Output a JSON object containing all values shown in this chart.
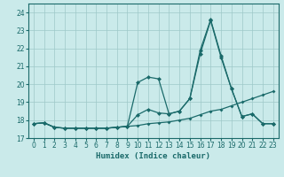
{
  "xlabel": "Humidex (Indice chaleur)",
  "xlim": [
    -0.5,
    23.5
  ],
  "ylim": [
    17,
    24.5
  ],
  "yticks": [
    17,
    18,
    19,
    20,
    21,
    22,
    23,
    24
  ],
  "xticks": [
    0,
    1,
    2,
    3,
    4,
    5,
    6,
    7,
    8,
    9,
    10,
    11,
    12,
    13,
    14,
    15,
    16,
    17,
    18,
    19,
    20,
    21,
    22,
    23
  ],
  "bg_color": "#caeaea",
  "grid_color": "#9ec8c8",
  "line_color": "#1a6a6a",
  "line1_x": [
    0,
    1,
    2,
    3,
    4,
    5,
    6,
    7,
    8,
    9,
    10,
    11,
    12,
    13,
    14,
    15,
    16,
    17,
    18,
    19,
    20,
    21,
    22,
    23
  ],
  "line1_y": [
    17.8,
    17.85,
    17.6,
    17.55,
    17.55,
    17.55,
    17.55,
    17.55,
    17.6,
    17.65,
    17.7,
    17.8,
    17.85,
    17.9,
    18.0,
    18.1,
    18.3,
    18.5,
    18.6,
    18.8,
    19.0,
    19.2,
    19.4,
    19.6
  ],
  "line2_x": [
    0,
    1,
    2,
    3,
    4,
    5,
    6,
    7,
    8,
    9,
    10,
    11,
    12,
    13,
    14,
    15,
    16,
    17,
    18,
    19,
    20,
    21,
    22,
    23
  ],
  "line2_y": [
    17.8,
    17.85,
    17.6,
    17.55,
    17.55,
    17.55,
    17.55,
    17.55,
    17.6,
    17.65,
    18.3,
    18.6,
    18.4,
    18.35,
    18.5,
    19.2,
    21.7,
    23.55,
    21.5,
    19.75,
    18.2,
    18.35,
    17.8,
    17.8
  ],
  "line3_x": [
    0,
    1,
    2,
    3,
    4,
    5,
    6,
    7,
    8,
    9,
    10,
    11,
    12,
    13,
    14,
    15,
    16,
    17,
    18,
    19,
    20,
    21,
    22,
    23
  ],
  "line3_y": [
    17.8,
    17.85,
    17.6,
    17.55,
    17.55,
    17.55,
    17.55,
    17.55,
    17.6,
    17.65,
    20.1,
    20.4,
    20.3,
    18.35,
    18.5,
    19.2,
    21.9,
    23.6,
    21.6,
    19.75,
    18.2,
    18.35,
    17.8,
    17.8
  ]
}
